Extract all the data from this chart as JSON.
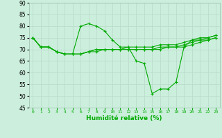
{
  "xlabel": "Humidité relative (%)",
  "background_color": "#cceedd",
  "grid_color": "#bbddcc",
  "line_color": "#00aa00",
  "xlim": [
    -0.5,
    23.5
  ],
  "ylim": [
    45,
    90
  ],
  "yticks": [
    45,
    50,
    55,
    60,
    65,
    70,
    75,
    80,
    85,
    90
  ],
  "xticks": [
    0,
    1,
    2,
    3,
    4,
    5,
    6,
    7,
    8,
    9,
    10,
    11,
    12,
    13,
    14,
    15,
    16,
    17,
    18,
    19,
    20,
    21,
    22,
    23
  ],
  "line1": [
    75,
    71,
    71,
    69,
    68,
    68,
    80,
    81,
    80,
    78,
    74,
    71,
    71,
    65,
    64,
    51,
    53,
    53,
    56,
    71,
    74,
    74,
    75,
    76
  ],
  "line2": [
    75,
    71,
    71,
    69,
    68,
    68,
    68,
    69,
    70,
    70,
    70,
    70,
    70,
    70,
    70,
    70,
    71,
    71,
    71,
    71,
    72,
    73,
    74,
    75
  ],
  "line3": [
    75,
    71,
    71,
    69,
    68,
    68,
    68,
    69,
    70,
    70,
    70,
    70,
    71,
    71,
    71,
    71,
    72,
    72,
    72,
    73,
    74,
    75,
    75,
    76
  ],
  "line4": [
    75,
    71,
    71,
    69,
    68,
    68,
    68,
    69,
    69,
    70,
    70,
    70,
    70,
    70,
    70,
    70,
    70,
    71,
    71,
    72,
    73,
    74,
    74,
    75
  ]
}
